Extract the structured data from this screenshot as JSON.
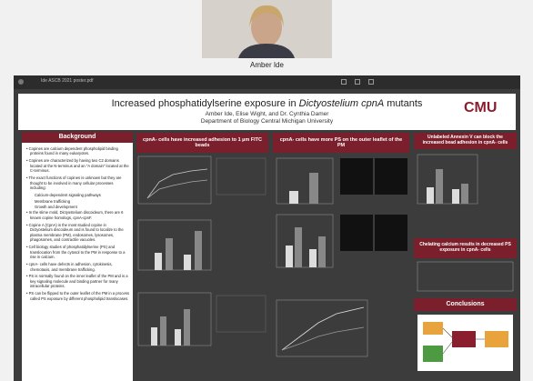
{
  "participant": {
    "name": "Amber Ide"
  },
  "viewer": {
    "filename": "Ide ASCB 2021 poster.pdf"
  },
  "poster": {
    "title_before": "Increased phosphatidylserine exposure in ",
    "title_italic": "Dictyostelium cpnA",
    "title_after": " mutants",
    "authors": "Amber Ide, Elise Wight, and Dr. Cynthia Damer",
    "department": "Department of Biology Central Michigan University",
    "logo": "CMU",
    "background": {
      "heading": "Background",
      "bullets": [
        "Copines are calcium dependent phospholipid binding proteins found in many eukaryotes.",
        "Copines are characterized by having two C2 domains located at the N-terminus and an \"A domain\" located at the C-terminus.",
        "The exact functions of copines is unknown but they are thought to be involved in many cellular processes including:",
        "In the slime mold, Dictyostelium discoideum, there are 6 known copine homologs, cpnA-cpnF.",
        "Copine A (CpnA) is the most studied copine in Dictyostelium discoideum and is found to localize to the plasma membrane (PM), endosomes, lysosomes, phagosomes, and contractile vacuoles.",
        "Cell biology studies of phosphatidylserine (PS) and translocation from the cytosol to the PM in response to a rise in calcium.",
        "cpnA- cells have defects in adhesion, cytokinesis, chemotaxis, and membrane trafficking.",
        "PS is normally found on the inner leaflet of the PM and is a key signaling molecule and binding partner for many intracellular proteins.",
        "PS can be flipped to the outer leaflet of the PM in a process called PS exposure by different phospholipid translocases."
      ],
      "subitems": [
        "Calcium-dependent signaling pathways",
        "Membrane trafficking",
        "Growth and development"
      ]
    },
    "headings": [
      "cpnA- cells have increased adhesion to 1 µm FITC beads",
      "cpnA- cells have more PS on the outer leaflet of the PM",
      "Unlabeled Annexin V can block the increased bead adhesion in cpnA- cells",
      "Chelating calcium results in decreased PS exposure in cpnA- cells",
      "Conclusions"
    ]
  }
}
